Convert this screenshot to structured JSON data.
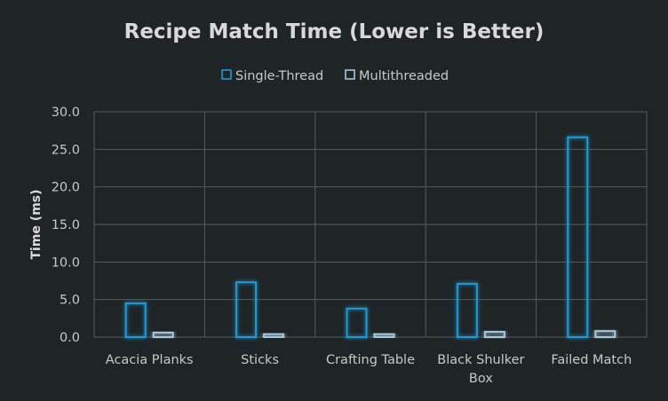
{
  "chart_data": {
    "type": "bar",
    "title": "Recipe Match Time (Lower is Better)",
    "xlabel": "",
    "ylabel": "Time (ms)",
    "ylim": [
      0,
      30
    ],
    "yticks": [
      "0.0",
      "5.0",
      "10.0",
      "15.0",
      "20.0",
      "25.0",
      "30.0"
    ],
    "categories": [
      [
        "Acacia Planks"
      ],
      [
        "Sticks"
      ],
      [
        "Crafting Table"
      ],
      [
        "Black Shulker",
        "Box"
      ],
      [
        "Failed Match"
      ]
    ],
    "series": [
      {
        "name": "Single-Thread",
        "values": [
          4.5,
          7.3,
          3.8,
          7.1,
          26.6
        ],
        "color": "#1f9bd7"
      },
      {
        "name": "Multithreaded",
        "values": [
          0.6,
          0.4,
          0.4,
          0.7,
          0.8
        ],
        "color": "#a7c7dc"
      }
    ],
    "grid": true,
    "legend": "top-center"
  }
}
